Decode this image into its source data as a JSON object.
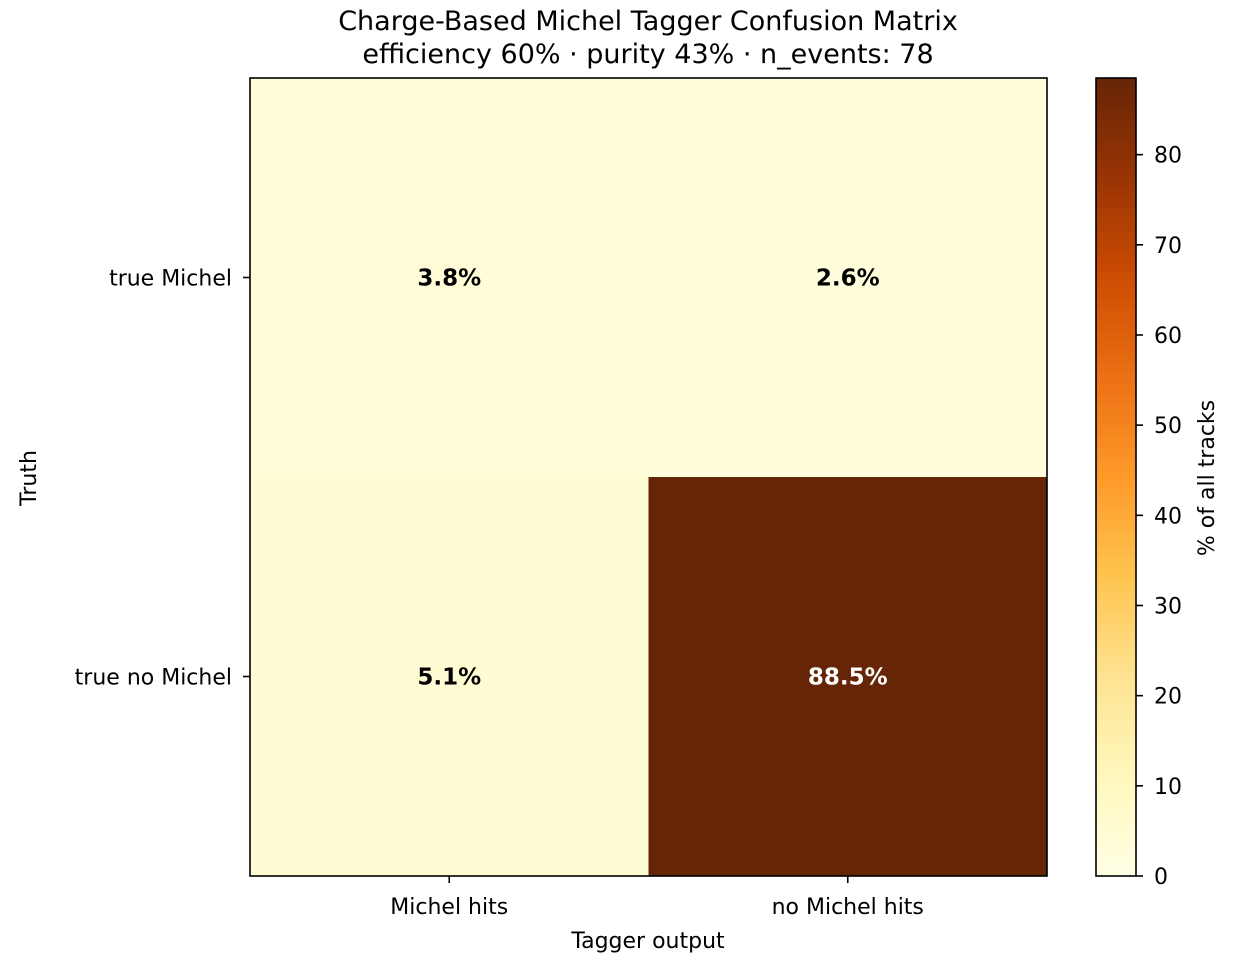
{
  "chart_data": {
    "type": "heatmap",
    "title": "Charge-Based Michel Tagger Confusion Matrix",
    "subtitle": "efficiency 60% · purity 43% · n_events: 78",
    "xlabel": "Tagger output",
    "ylabel": "Truth",
    "x_categories": [
      "Michel hits",
      "no Michel hits"
    ],
    "y_categories": [
      "true Michel",
      "true no Michel"
    ],
    "values": [
      [
        3.8,
        2.6
      ],
      [
        5.1,
        88.5
      ]
    ],
    "cell_labels": [
      [
        "3.8%",
        "2.6%"
      ],
      [
        "5.1%",
        "88.5%"
      ]
    ],
    "colorbar": {
      "label": "% of all tracks",
      "min": 0,
      "max": 88.5,
      "ticks": [
        0,
        10,
        20,
        30,
        40,
        50,
        60,
        70,
        80
      ],
      "colormap": "YlOrBr"
    }
  }
}
